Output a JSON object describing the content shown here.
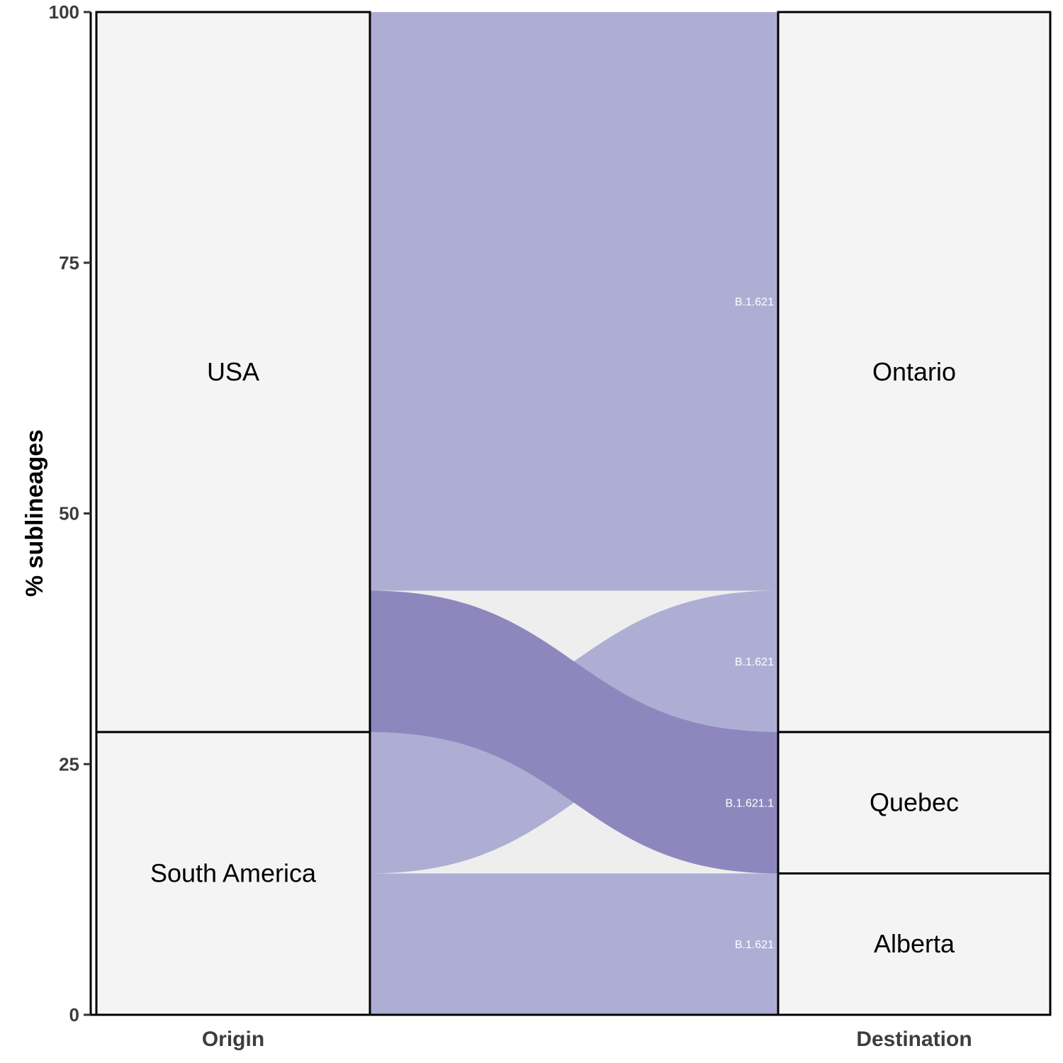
{
  "chart_data": {
    "type": "alluvial",
    "ylabel": "% sublineages",
    "ylim": [
      0,
      100
    ],
    "yticks": [
      0,
      25,
      50,
      75,
      100
    ],
    "axes": [
      "Origin",
      "Destination"
    ],
    "strata": {
      "Origin": [
        {
          "label": "South America",
          "value": 28.2
        },
        {
          "label": "USA",
          "value": 71.8
        }
      ],
      "Destination": [
        {
          "label": "Alberta",
          "value": 14.1
        },
        {
          "label": "Quebec",
          "value": 14.1
        },
        {
          "label": "Ontario",
          "value": 71.8
        }
      ]
    },
    "flows": [
      {
        "origin": "South America",
        "destination": "Alberta",
        "lineage": "B.1.621",
        "value": 14.1
      },
      {
        "origin": "South America",
        "destination": "Ontario",
        "lineage": "B.1.621",
        "value": 14.1
      },
      {
        "origin": "USA",
        "destination": "Quebec",
        "lineage": "B.1.621.1",
        "value": 14.1
      },
      {
        "origin": "USA",
        "destination": "Ontario",
        "lineage": "B.1.621",
        "value": 57.7
      }
    ],
    "colors": {
      "B.1.621": "#aeaed5",
      "B.1.621.1": "#8d87bd",
      "stratum_fill": "#f4f4f4",
      "band_background": "#eeeeee"
    }
  }
}
